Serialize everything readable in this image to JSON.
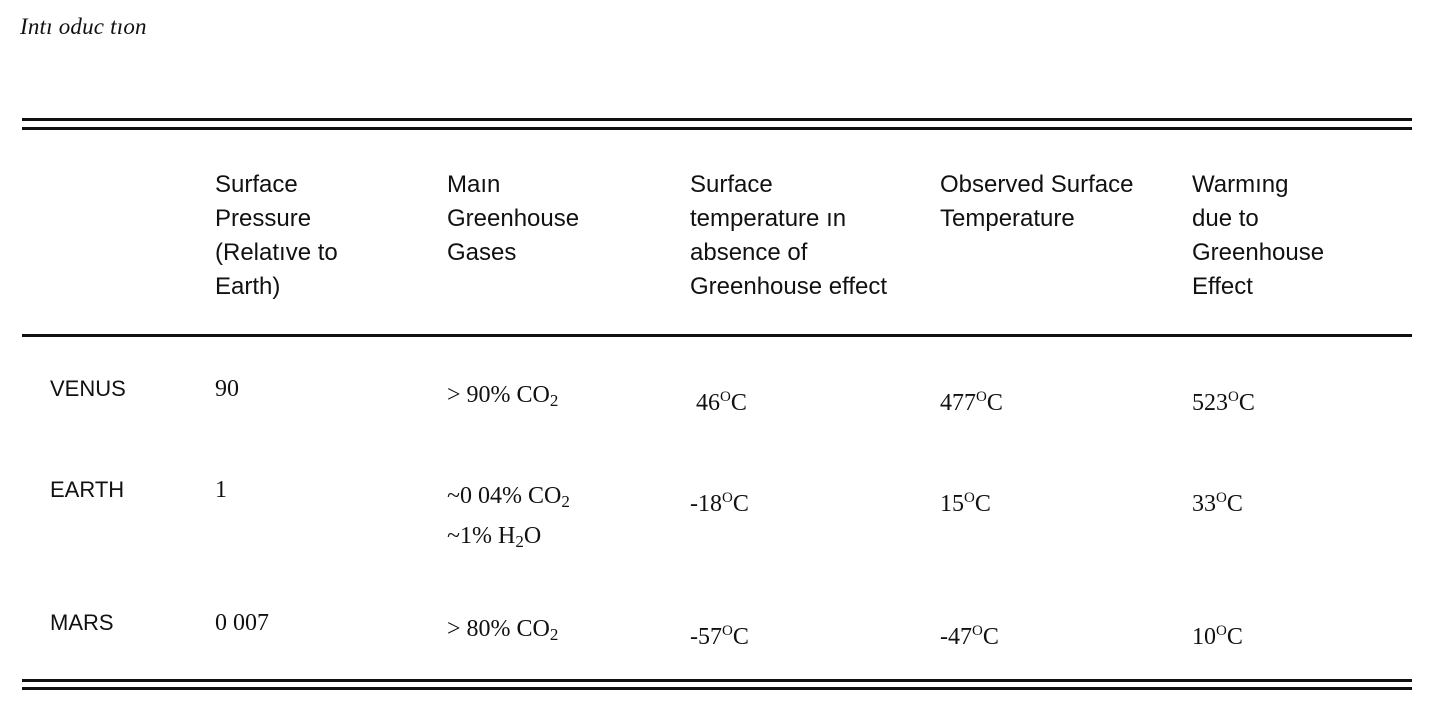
{
  "header": {
    "section_label": "Intı oduc tıon"
  },
  "table": {
    "columns": [
      {
        "lines": [
          "Surface",
          "Pressure",
          "(Relatıve to",
          "Earth)"
        ]
      },
      {
        "lines": [
          "Maın",
          "Greenhouse",
          "Gases"
        ]
      },
      {
        "lines": [
          "Surface",
          "temperature ın",
          "absence of",
          "Greenhouse effect"
        ]
      },
      {
        "lines": [
          "Observed Surface",
          "Temperature"
        ]
      },
      {
        "lines": [
          "Warmıng",
          "due to",
          "Greenhouse",
          "Effect"
        ]
      }
    ],
    "rows": [
      {
        "planet": "VENUS",
        "pressure": "90",
        "gases": [
          {
            "prefix": "> 90% CO",
            "sub": "2",
            "suffix": ""
          }
        ],
        "temp_absent": {
          "value": " 46",
          "sup": "O",
          "unit": "C"
        },
        "temp_observed": {
          "value": "477",
          "sup": "O",
          "unit": "C"
        },
        "warming": {
          "value": "523",
          "sup": "O",
          "unit": "C"
        }
      },
      {
        "planet": "EARTH",
        "pressure": "1",
        "gases": [
          {
            "prefix": "~0 04% CO",
            "sub": "2",
            "suffix": ""
          },
          {
            "prefix": "~1% H",
            "sub": "2",
            "suffix": "O"
          }
        ],
        "temp_absent": {
          "value": "-18",
          "sup": "O",
          "unit": "C"
        },
        "temp_observed": {
          "value": "15",
          "sup": "O",
          "unit": "C"
        },
        "warming": {
          "value": "33",
          "sup": "O",
          "unit": "C"
        }
      },
      {
        "planet": "MARS",
        "pressure": "0 007",
        "gases": [
          {
            "prefix": "> 80% CO",
            "sub": "2",
            "suffix": ""
          }
        ],
        "temp_absent": {
          "value": "-57",
          "sup": "O",
          "unit": "C"
        },
        "temp_observed": {
          "value": "-47",
          "sup": "O",
          "unit": "C"
        },
        "warming": {
          "value": "10",
          "sup": "O",
          "unit": "C"
        }
      }
    ]
  }
}
